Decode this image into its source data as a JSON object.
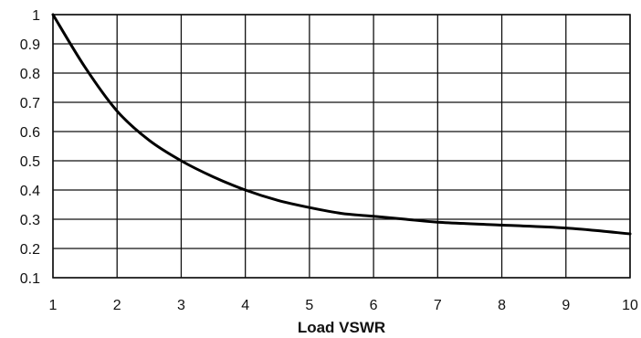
{
  "chart_data": {
    "type": "line",
    "title": "",
    "xlabel": "Load VSWR",
    "ylabel": "",
    "xlim": [
      1,
      10
    ],
    "ylim": [
      0.1,
      1
    ],
    "grid": true,
    "x_ticks": [
      "1",
      "2",
      "3",
      "4",
      "5",
      "6",
      "7",
      "8",
      "9",
      "10"
    ],
    "y_ticks": [
      "0.1",
      "0.2",
      "0.3",
      "0.4",
      "0.5",
      "0.6",
      "0.7",
      "0.8",
      "0.9",
      "1"
    ],
    "series": [
      {
        "color": "#000000",
        "x": [
          1,
          1.5,
          2,
          2.5,
          3,
          3.5,
          4,
          4.5,
          5,
          5.5,
          6,
          6.5,
          7,
          8,
          9,
          10
        ],
        "y": [
          1.0,
          0.82,
          0.67,
          0.57,
          0.5,
          0.445,
          0.4,
          0.365,
          0.34,
          0.32,
          0.31,
          0.3,
          0.29,
          0.28,
          0.27,
          0.25
        ]
      }
    ]
  }
}
